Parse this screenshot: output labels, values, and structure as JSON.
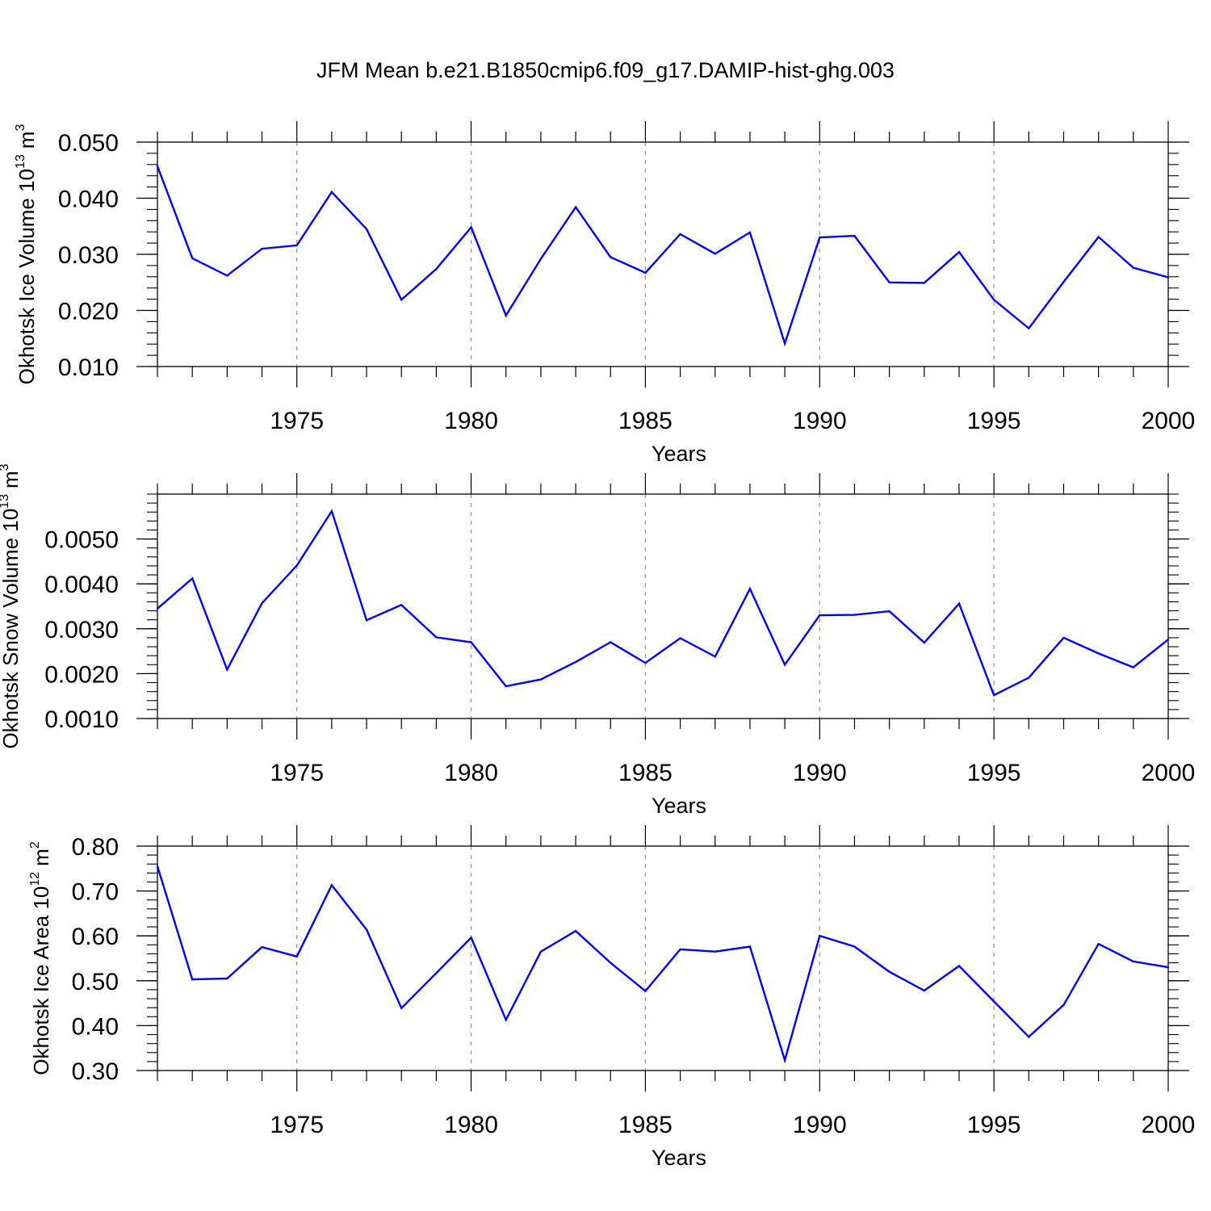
{
  "title": "JFM Mean b.e21.B1850cmip6.f09_g17.DAMIP-hist-ghg.003",
  "colors": {
    "line": "#0000ff",
    "axis": "#000000",
    "grid": "#999999"
  },
  "chart_data": [
    {
      "type": "line",
      "ylabel_main": "Okhotsk Ice Volume 10",
      "ylabel_exp": "13",
      "ylabel_unit": "m",
      "ylabel_unit_exp": "3",
      "xlabel": "Years",
      "xlim": [
        1971,
        2000
      ],
      "ylim": [
        0.01,
        0.05
      ],
      "xticks": [
        "1975",
        "1980",
        "1985",
        "1990",
        "1995",
        "2000"
      ],
      "yticks": [
        "0.010",
        "0.020",
        "0.030",
        "0.040",
        "0.050"
      ],
      "grid": "vertical dashed at major x ticks",
      "x": [
        1971,
        1972,
        1973,
        1974,
        1975,
        1976,
        1977,
        1978,
        1979,
        1980,
        1981,
        1982,
        1983,
        1984,
        1985,
        1986,
        1987,
        1988,
        1989,
        1990,
        1991,
        1992,
        1993,
        1994,
        1995,
        1996,
        1997,
        1998,
        1999,
        2000
      ],
      "values": [
        0.0457,
        0.0293,
        0.0262,
        0.031,
        0.0316,
        0.0411,
        0.0345,
        0.0219,
        0.0274,
        0.0348,
        0.0191,
        0.0292,
        0.0384,
        0.0295,
        0.0267,
        0.0336,
        0.0301,
        0.0339,
        0.0141,
        0.033,
        0.0333,
        0.025,
        0.0249,
        0.0304,
        0.0219,
        0.0168,
        0.0251,
        0.0331,
        0.0276,
        0.0259
      ]
    },
    {
      "type": "line",
      "ylabel_main": "Okhotsk Snow Volume 10",
      "ylabel_exp": "13",
      "ylabel_unit": "m",
      "ylabel_unit_exp": "3",
      "xlabel": "Years",
      "xlim": [
        1971,
        2000
      ],
      "ylim": [
        0.001,
        0.006
      ],
      "xticks": [
        "1975",
        "1980",
        "1985",
        "1990",
        "1995",
        "2000"
      ],
      "yticks": [
        "0.0010",
        "0.0020",
        "0.0030",
        "0.0040",
        "0.0050"
      ],
      "grid": "vertical dashed at major x ticks",
      "x": [
        1971,
        1972,
        1973,
        1974,
        1975,
        1976,
        1977,
        1978,
        1979,
        1980,
        1981,
        1982,
        1983,
        1984,
        1985,
        1986,
        1987,
        1988,
        1989,
        1990,
        1991,
        1992,
        1993,
        1994,
        1995,
        1996,
        1997,
        1998,
        1999,
        2000
      ],
      "values": [
        0.00345,
        0.00412,
        0.00209,
        0.00357,
        0.00441,
        0.00562,
        0.00319,
        0.00353,
        0.00281,
        0.0027,
        0.00172,
        0.00187,
        0.00226,
        0.0027,
        0.00224,
        0.00279,
        0.00238,
        0.00389,
        0.0022,
        0.0033,
        0.00331,
        0.00339,
        0.00269,
        0.00356,
        0.00152,
        0.00191,
        0.0028,
        0.00245,
        0.00214,
        0.00276
      ]
    },
    {
      "type": "line",
      "ylabel_main": "Okhotsk Ice Area 10",
      "ylabel_exp": "12",
      "ylabel_unit": "m",
      "ylabel_unit_exp": "2",
      "xlabel": "Years",
      "xlim": [
        1971,
        2000
      ],
      "ylim": [
        0.3,
        0.8
      ],
      "xticks": [
        "1975",
        "1980",
        "1985",
        "1990",
        "1995",
        "2000"
      ],
      "yticks": [
        "0.30",
        "0.40",
        "0.50",
        "0.60",
        "0.70",
        "0.80"
      ],
      "grid": "vertical dashed at major x ticks",
      "x": [
        1971,
        1972,
        1973,
        1974,
        1975,
        1976,
        1977,
        1978,
        1979,
        1980,
        1981,
        1982,
        1983,
        1984,
        1985,
        1986,
        1987,
        1988,
        1989,
        1990,
        1991,
        1992,
        1993,
        1994,
        1995,
        1996,
        1997,
        1998,
        1999,
        2000
      ],
      "values": [
        0.755,
        0.503,
        0.505,
        0.575,
        0.554,
        0.713,
        0.614,
        0.439,
        0.517,
        0.596,
        0.413,
        0.565,
        0.611,
        0.54,
        0.477,
        0.57,
        0.565,
        0.576,
        0.323,
        0.6,
        0.576,
        0.52,
        0.478,
        0.533,
        0.454,
        0.375,
        0.446,
        0.582,
        0.543,
        0.53
      ]
    }
  ]
}
